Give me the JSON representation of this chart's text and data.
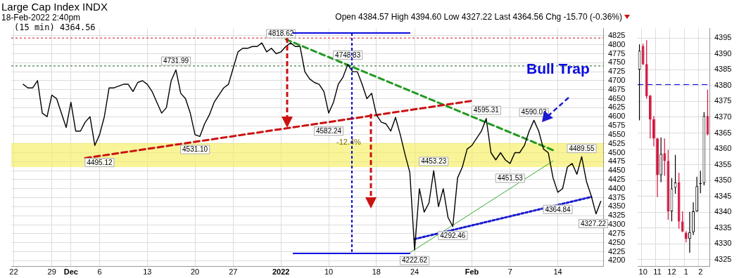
{
  "chart_data": [
    {
      "type": "line",
      "title": "Large Cap Index INDX",
      "subtitle": "18-Feb-2022 2:40pm",
      "annotations": [
        "Open 4384.57 High 4394.60 Low 4327.22 Last 4364.56 Chg -15.70 (-0.36%)",
        "(15 min) 4364.56",
        "-12.4%",
        "Bull Trap",
        {
          "text": "4818.62",
          "x": "2022",
          "y": 4818.62
        },
        {
          "text": "4731.99",
          "y": 4731.99
        },
        {
          "text": "4748.83",
          "y": 4748.83
        },
        {
          "text": "4495.12",
          "x": "6",
          "y": 4495.12
        },
        {
          "text": "4531.10",
          "x": "20",
          "y": 4531.1
        },
        {
          "text": "4582.24",
          "x": "10",
          "y": 4582.24
        },
        {
          "text": "4222.62",
          "x": "24",
          "y": 4222.62
        },
        {
          "text": "4453.23",
          "y": 4453.23
        },
        {
          "text": "4292.46",
          "y": 4292.46
        },
        {
          "text": "4595.31",
          "y": 4595.31
        },
        {
          "text": "4451.53",
          "x": "7",
          "y": 4451.53
        },
        {
          "text": "4590.03",
          "y": 4590.03
        },
        {
          "text": "4489.55",
          "y": 4489.55
        },
        {
          "text": "4364.84",
          "x": "14",
          "y": 4364.84
        },
        "4327.22"
      ],
      "categories": [
        "22",
        null,
        null,
        null,
        null,
        null,
        null,
        null,
        "29",
        null,
        null,
        null,
        "Dec",
        null,
        null,
        null,
        null,
        null,
        "6",
        null,
        null,
        null,
        null,
        null,
        null,
        null,
        null,
        null,
        "13",
        null,
        null,
        null,
        null,
        null,
        null,
        null,
        null,
        null,
        "20",
        null,
        null,
        null,
        null,
        null,
        null,
        null,
        "27",
        null,
        null,
        null,
        null,
        null,
        null,
        null,
        null,
        null,
        "2022",
        null,
        null,
        null,
        null,
        null,
        null,
        null,
        null,
        null,
        "10",
        null,
        null,
        null,
        null,
        null,
        null,
        null,
        null,
        null,
        "18",
        null,
        null,
        null,
        null,
        null,
        null,
        null,
        "24",
        null,
        null,
        null,
        null,
        null,
        null,
        null,
        null,
        null,
        null,
        null,
        "Feb",
        null,
        null,
        null,
        null,
        null,
        null,
        null,
        "7",
        null,
        null,
        null,
        null,
        null,
        null,
        null,
        null,
        null,
        "14",
        null,
        null,
        null,
        null,
        null,
        null,
        null,
        null,
        null
      ],
      "series": [
        {
          "color": "#000000",
          "line_style": "solid",
          "values": [
            null,
            null,
            4690,
            4680,
            4680,
            4700,
            4610,
            4600,
            4660,
            4650,
            4610,
            4570,
            4640,
            4560,
            4560,
            4585,
            4600,
            4520,
            4550,
            4600,
            4680,
            4680,
            4685,
            4690,
            4690,
            4670,
            4695,
            4700,
            4690,
            4670,
            4640,
            4610,
            4625,
            4700,
            4730,
            4665,
            4650,
            4610,
            4550,
            4545,
            4580,
            4605,
            4640,
            4660,
            4680,
            4690,
            4735,
            4780,
            4790,
            4790,
            4795,
            4795,
            4805,
            4780,
            4790,
            4775,
            4780,
            4795,
            4805,
            4795,
            4795,
            4725,
            4705,
            4695,
            4690,
            4670,
            4610,
            4640,
            4690,
            4710,
            4745,
            4725,
            4725,
            4690,
            4650,
            4665,
            4605,
            4585,
            4580,
            4560,
            4598,
            4550,
            4495,
            4445,
            4230,
            4400,
            4335,
            4360,
            4450,
            4350,
            4400,
            4320,
            4295,
            4430,
            4460,
            4510,
            4520,
            4540,
            4560,
            4595,
            4500,
            4480,
            4500,
            4480,
            4470,
            4500,
            4500,
            4520,
            4560,
            4590,
            4560,
            4510,
            4500,
            4430,
            4390,
            4400,
            4460,
            4470,
            4440,
            4489,
            4420,
            4380,
            4330,
            4365
          ]
        },
        {
          "color": "#cc1111",
          "line_style": "dashed",
          "values": [
            null,
            null,
            null,
            null,
            null,
            null,
            null,
            null,
            null,
            null,
            null,
            null,
            null,
            null,
            null,
            4485,
            null,
            null,
            null,
            null,
            null,
            null,
            null,
            null,
            null,
            null,
            null,
            null,
            null,
            null,
            null,
            null,
            null,
            null,
            null,
            null,
            null,
            null,
            null,
            null,
            null,
            null,
            null,
            null,
            null,
            null,
            null,
            null,
            null,
            null,
            null,
            null,
            null,
            null,
            null,
            null,
            null,
            null,
            null,
            null,
            null,
            null,
            null,
            null,
            null,
            null,
            null,
            null,
            null,
            null,
            null,
            null,
            null,
            null,
            null,
            null,
            null,
            null,
            null,
            null,
            null,
            null,
            null,
            null,
            null,
            null,
            null,
            null,
            null,
            null,
            null,
            null,
            null,
            null,
            null,
            null,
            4644,
            null,
            null,
            null,
            null,
            null,
            null,
            null,
            null,
            null,
            null,
            null,
            null,
            null,
            null,
            null,
            null,
            null,
            null,
            null,
            null,
            null,
            null,
            null,
            null,
            null,
            null,
            null
          ]
        },
        {
          "color": "#229922",
          "line_style": "dashed",
          "values": [
            null,
            null,
            null,
            null,
            null,
            null,
            null,
            null,
            null,
            null,
            null,
            null,
            null,
            null,
            null,
            null,
            null,
            null,
            null,
            null,
            null,
            null,
            null,
            null,
            null,
            null,
            null,
            null,
            null,
            null,
            null,
            null,
            null,
            null,
            null,
            null,
            null,
            null,
            null,
            null,
            null,
            null,
            null,
            null,
            null,
            null,
            null,
            null,
            null,
            null,
            null,
            null,
            null,
            null,
            null,
            null,
            null,
            4815,
            null,
            null,
            null,
            null,
            null,
            null,
            null,
            null,
            null,
            null,
            null,
            null,
            null,
            null,
            null,
            null,
            null,
            null,
            null,
            null,
            null,
            null,
            null,
            null,
            null,
            null,
            null,
            null,
            null,
            null,
            null,
            null,
            null,
            null,
            null,
            null,
            null,
            null,
            null,
            null,
            null,
            null,
            null,
            null,
            null,
            null,
            null,
            null,
            null,
            null,
            null,
            null,
            null,
            null,
            null,
            4507,
            null,
            null,
            null,
            null,
            null,
            null,
            null,
            null,
            null,
            null
          ]
        },
        {
          "color": "#1a1ad0",
          "line_style": "dotted",
          "values": [
            null,
            null,
            null,
            null,
            null,
            null,
            null,
            null,
            null,
            null,
            null,
            null,
            null,
            null,
            null,
            null,
            null,
            null,
            null,
            null,
            null,
            null,
            null,
            null,
            null,
            null,
            null,
            null,
            null,
            null,
            null,
            null,
            null,
            null,
            null,
            null,
            null,
            null,
            null,
            null,
            null,
            null,
            null,
            null,
            null,
            null,
            null,
            null,
            null,
            null,
            null,
            null,
            null,
            null,
            null,
            null,
            null,
            null,
            null,
            null,
            null,
            null,
            null,
            null,
            null,
            null,
            null,
            null,
            null,
            null,
            null,
            null,
            null,
            null,
            null,
            null,
            null,
            null,
            null,
            null,
            null,
            null,
            null,
            null,
            4260,
            null,
            null,
            null,
            null,
            null,
            null,
            null,
            null,
            null,
            null,
            null,
            null,
            null,
            null,
            null,
            null,
            null,
            null,
            null,
            null,
            null,
            null,
            null,
            null,
            null,
            null,
            null,
            null,
            null,
            null,
            null,
            null,
            null,
            null,
            null,
            null,
            4377,
            null,
            null
          ]
        },
        {
          "color": "#33aa33",
          "line_style": "solid",
          "values": [
            null,
            null,
            null,
            null,
            null,
            null,
            null,
            null,
            null,
            null,
            null,
            null,
            null,
            null,
            null,
            null,
            null,
            null,
            null,
            null,
            null,
            null,
            null,
            null,
            null,
            null,
            null,
            null,
            null,
            null,
            null,
            null,
            null,
            null,
            null,
            null,
            null,
            null,
            null,
            null,
            null,
            null,
            null,
            null,
            null,
            null,
            null,
            null,
            null,
            null,
            null,
            null,
            null,
            null,
            null,
            null,
            null,
            null,
            null,
            null,
            null,
            null,
            null,
            null,
            null,
            null,
            null,
            null,
            null,
            null,
            null,
            null,
            null,
            null,
            null,
            null,
            null,
            null,
            null,
            null,
            null,
            null,
            null,
            4222,
            null,
            null,
            null,
            null,
            null,
            null,
            null,
            null,
            null,
            null,
            null,
            null,
            null,
            null,
            null,
            null,
            null,
            null,
            null,
            null,
            null,
            null,
            null,
            null,
            null,
            null,
            null,
            null,
            null,
            4477,
            null,
            null,
            null,
            null,
            null,
            null,
            null,
            null,
            null,
            null
          ]
        }
      ],
      "ylim": [
        4185,
        4845
      ],
      "yticks": [
        4200,
        4225,
        4250,
        4275,
        4300,
        4325,
        4350,
        4375,
        4400,
        4425,
        4450,
        4475,
        4500,
        4525,
        4550,
        4575,
        4600,
        4625,
        4650,
        4675,
        4700,
        4725,
        4750,
        4775,
        4800,
        4825
      ],
      "grid": true,
      "marker": "none",
      "ref_lines": [
        {
          "axis": "y",
          "value": 4818.62,
          "color": "#cc1111",
          "line_style": "dotted"
        },
        {
          "axis": "y",
          "value": 4741,
          "color": "#116611",
          "line_style": "dotted"
        }
      ],
      "bands": [
        {
          "axis": "y",
          "from": 4460,
          "to": 4527,
          "color": "#f5ee60"
        }
      ]
    },
    {
      "type": "candlestick",
      "categories": [
        null,
        "10",
        null,
        null,
        null,
        "11",
        null,
        null,
        null,
        "12",
        null,
        null,
        null,
        "1",
        null,
        null,
        null,
        "2",
        null,
        null
      ],
      "ohlc": [
        [
          4385,
          4393,
          4369,
          4391
        ],
        [
          4392.5,
          4393.2,
          4386.4,
          4386.8
        ],
        [
          4386.8,
          4394.3,
          4375.8,
          4376.6
        ],
        [
          4376.8,
          4377,
          4363.3,
          4369.3
        ],
        [
          4369.3,
          4370.4,
          4360.8,
          4363.3
        ],
        [
          4363.3,
          4363.5,
          4344.8,
          4351.7
        ],
        [
          4351.7,
          4363.6,
          4349.5,
          4358.4
        ],
        [
          4358.6,
          4363.3,
          4351.5,
          4356.2
        ],
        [
          4356.2,
          4359.7,
          4337.6,
          4340.3
        ],
        [
          4340.3,
          4350.8,
          4337.1,
          4347.5
        ],
        [
          4347.7,
          4358.1,
          4345.8,
          4349.4
        ],
        [
          4349.4,
          4352.4,
          4334.8,
          4337.1
        ],
        [
          4337.1,
          4340.3,
          4333.7,
          4333.9
        ],
        [
          4333.5,
          4334,
          4330.5,
          4331.6
        ],
        [
          4331.6,
          4340.1,
          4327.22,
          4333.7
        ],
        [
          4333.7,
          4343.1,
          4332.8,
          4340.3
        ],
        [
          4340.3,
          4351.2,
          4340.2,
          4348.2
        ],
        [
          4348.9,
          4353.1,
          4346,
          4349.2
        ],
        [
          4349.2,
          4371.6,
          4348.5,
          4370.4
        ],
        [
          4370.4,
          4378.7,
          4364.3,
          4364.56
        ]
      ],
      "colors": [
        "#000000",
        "#d0103a",
        "#d0103a",
        "#d0103a",
        "#d0103a",
        "#d0103a",
        "#000000",
        "#d0103a",
        "#d0103a",
        "#000000",
        "#000000",
        "#d0103a",
        "#d0103a",
        "#d0103a",
        "#000000",
        "#000000",
        "#000000",
        "#000000",
        "#000000",
        "#d0103a"
      ],
      "ylim": [
        4323,
        4398
      ],
      "yticks": [
        4325,
        4330,
        4335,
        4340,
        4345,
        4350,
        4355,
        4360,
        4365,
        4370,
        4375,
        4380,
        4385,
        4390,
        4395
      ],
      "grid": true,
      "ref_lines": [
        {
          "axis": "y",
          "value": 4380.3,
          "color": "#0000ee",
          "line_style": "dashed"
        }
      ]
    }
  ]
}
